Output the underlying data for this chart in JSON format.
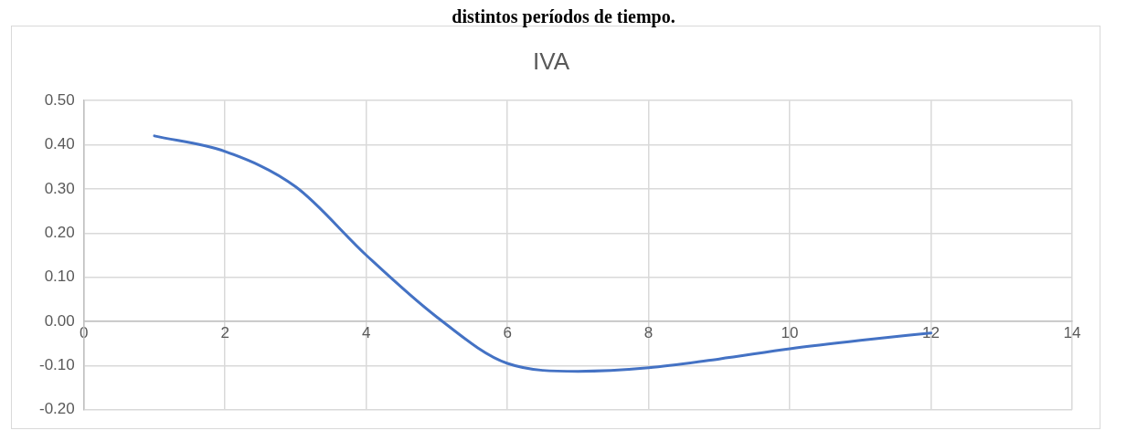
{
  "chart_data": {
    "type": "line",
    "title": "IVA",
    "annotations": [
      "distintos períodos de tiempo."
    ],
    "x": [
      1,
      2,
      3,
      4,
      5,
      6,
      7,
      8,
      9,
      10,
      11,
      12
    ],
    "series": [
      {
        "color": "#4472c4",
        "values": [
          0.42,
          0.385,
          0.305,
          0.15,
          0.01,
          -0.095,
          -0.113,
          -0.105,
          -0.085,
          -0.062,
          -0.043,
          -0.026
        ]
      }
    ],
    "xlim": [
      0,
      14
    ],
    "xticks": [
      0,
      2,
      4,
      6,
      8,
      10,
      12,
      14
    ],
    "ylim": [
      -0.2,
      0.5
    ],
    "yticks": [
      {
        "value": -0.2,
        "label": "-0.20"
      },
      {
        "value": -0.1,
        "label": "-0.10"
      },
      {
        "value": 0,
        "label": "0.00"
      },
      {
        "value": 0.1,
        "label": "0.10"
      },
      {
        "value": 0.2,
        "label": "0.20"
      },
      {
        "value": 0.3,
        "label": "0.30"
      },
      {
        "value": 0.4,
        "label": "0.40"
      },
      {
        "value": 0.5,
        "label": "0.50"
      }
    ],
    "grid": true,
    "legend": false,
    "marker": "none",
    "line_style": "solid"
  }
}
